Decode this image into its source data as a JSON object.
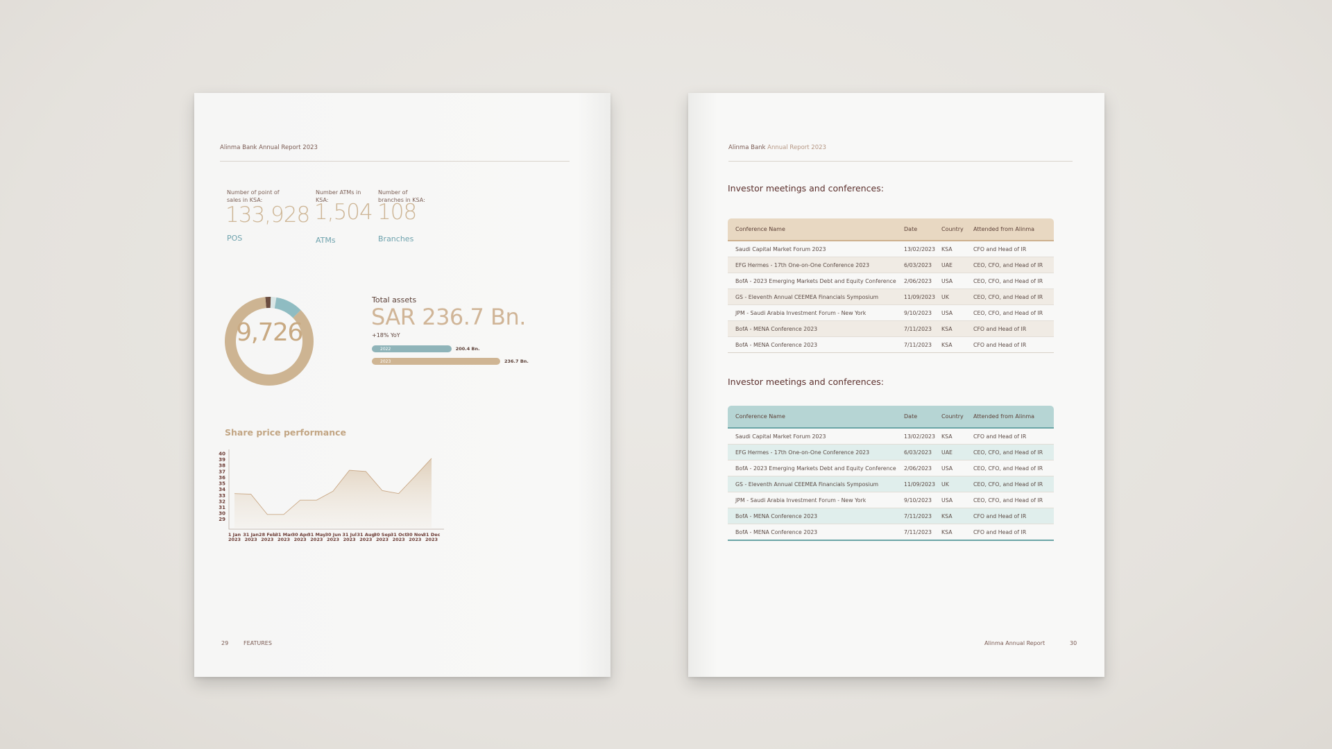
{
  "left_page": {
    "running_head": "Alinma Bank Annual Report 2023",
    "stats": [
      {
        "label": "Number of point of sales in KSA:",
        "value": "133,928",
        "unit": "POS"
      },
      {
        "label": "Number ATMs in KSA:",
        "value": "1,504",
        "unit": "ATMs"
      },
      {
        "label": "Number of branches in KSA:",
        "value": "108",
        "unit": "Branches"
      }
    ],
    "donut": {
      "value": "9,726",
      "segments": [
        {
          "fraction": 0.86,
          "color": "#cdb492"
        },
        {
          "fraction": 0.1,
          "color": "#8fbcc2"
        },
        {
          "fraction": 0.02,
          "color": "#d9e6e6"
        },
        {
          "fraction": 0.02,
          "color": "#6b4d40"
        }
      ]
    },
    "total_assets": {
      "title": "Total assets",
      "value": "SAR 236.7 Bn.",
      "yoy": "+18% YoY",
      "bars": [
        {
          "year": "2022",
          "label": "200.4 Bn.",
          "value": 200.4,
          "color": "#8fb4b9"
        },
        {
          "year": "2023",
          "label": "236.7 Bn.",
          "value": 236.7,
          "color": "#cfb593"
        }
      ]
    },
    "chart_title": "Share price performance",
    "footer_page": "29",
    "footer_section": "FEATURES"
  },
  "chart_data": {
    "type": "area",
    "title": "Share price performance",
    "xlabel": "",
    "ylabel": "",
    "categories": [
      "1 Jan 2023",
      "31 Jan 2023",
      "28 Feb 2023",
      "31 Mar 2023",
      "30 Apr 2023",
      "31 May 2023",
      "30 Jun 2023",
      "31 Jul 2023",
      "31 Aug 2023",
      "30 Sep 2023",
      "31 Oct 2023",
      "30 Nov 2023",
      "31 Dec 2023"
    ],
    "tick_labels": [
      [
        "1 Jan",
        "2023"
      ],
      [
        "31 Jan",
        "2023"
      ],
      [
        "28 Feb",
        "2023"
      ],
      [
        "31 Mar",
        "2023"
      ],
      [
        "30 Apr",
        "2023"
      ],
      [
        "31 May",
        "2023"
      ],
      [
        "30 Jun",
        "2023"
      ],
      [
        "31 Jul",
        "2023"
      ],
      [
        "31 Aug",
        "2023"
      ],
      [
        "30 Sep",
        "2023"
      ],
      [
        "31 Oct",
        "2023"
      ],
      [
        "30 Nov",
        "2023"
      ],
      [
        "31 Dec",
        "2023"
      ]
    ],
    "values": [
      33.3,
      33.2,
      29.8,
      29.8,
      32.2,
      32.2,
      33.7,
      37.2,
      37.0,
      33.8,
      33.3,
      36.2,
      39.2
    ],
    "yticks": [
      40,
      39,
      38,
      37,
      36,
      35,
      34,
      33,
      32,
      31,
      30,
      29
    ],
    "ylim": [
      28.5,
      40
    ],
    "grid": false,
    "color": "#c9a784"
  },
  "right_page": {
    "running_head_brand": "Alinma Bank",
    "running_head_rest": "Annual Report 2023",
    "sections": [
      {
        "title": "Investor meetings and conferences:",
        "headers": [
          "Conference Name",
          "Date",
          "Country",
          "Attended from Alinma"
        ],
        "rows": [
          [
            "Saudi Capital Market Forum 2023",
            "13/02/2023",
            "KSA",
            "CFO and Head of IR"
          ],
          [
            "EFG Hermes - 17th One-on-One Conference 2023",
            "6/03/2023",
            "UAE",
            "CEO, CFO, and Head of IR"
          ],
          [
            "BofA - 2023 Emerging Markets Debt and Equity Conference",
            "2/06/2023",
            "USA",
            "CEO, CFO, and Head of IR"
          ],
          [
            "GS - Eleventh Annual CEEMEA Financials Symposium",
            "11/09/2023",
            "UK",
            "CEO, CFO, and Head of IR"
          ],
          [
            "JPM - Saudi Arabia Investment Forum - New York",
            "9/10/2023",
            "USA",
            "CEO, CFO, and Head of IR"
          ],
          [
            "BofA - MENA Conference 2023",
            "7/11/2023",
            "KSA",
            "CFO and Head of IR"
          ],
          [
            "BofA - MENA Conference 2023",
            "7/11/2023",
            "KSA",
            "CFO and Head of IR"
          ]
        ]
      },
      {
        "title": "Investor meetings and conferences:",
        "headers": [
          "Conference Name",
          "Date",
          "Country",
          "Attended from Alinma"
        ],
        "rows": [
          [
            "Saudi Capital Market Forum 2023",
            "13/02/2023",
            "KSA",
            "CFO and Head of IR"
          ],
          [
            "EFG Hermes - 17th One-on-One Conference 2023",
            "6/03/2023",
            "UAE",
            "CEO, CFO, and Head of IR"
          ],
          [
            "BofA - 2023 Emerging Markets Debt and Equity Conference",
            "2/06/2023",
            "USA",
            "CEO, CFO, and Head of IR"
          ],
          [
            "GS - Eleventh Annual CEEMEA Financials Symposium",
            "11/09/2023",
            "UK",
            "CEO, CFO, and Head of IR"
          ],
          [
            "JPM - Saudi Arabia Investment Forum - New York",
            "9/10/2023",
            "USA",
            "CEO, CFO, and Head of IR"
          ],
          [
            "BofA - MENA Conference 2023",
            "7/11/2023",
            "KSA",
            "CFO and Head of IR"
          ],
          [
            "BofA - MENA Conference 2023",
            "7/11/2023",
            "KSA",
            "CFO and Head of IR"
          ]
        ]
      }
    ],
    "footer_title": "Alinma Annual Report",
    "footer_page": "30"
  }
}
